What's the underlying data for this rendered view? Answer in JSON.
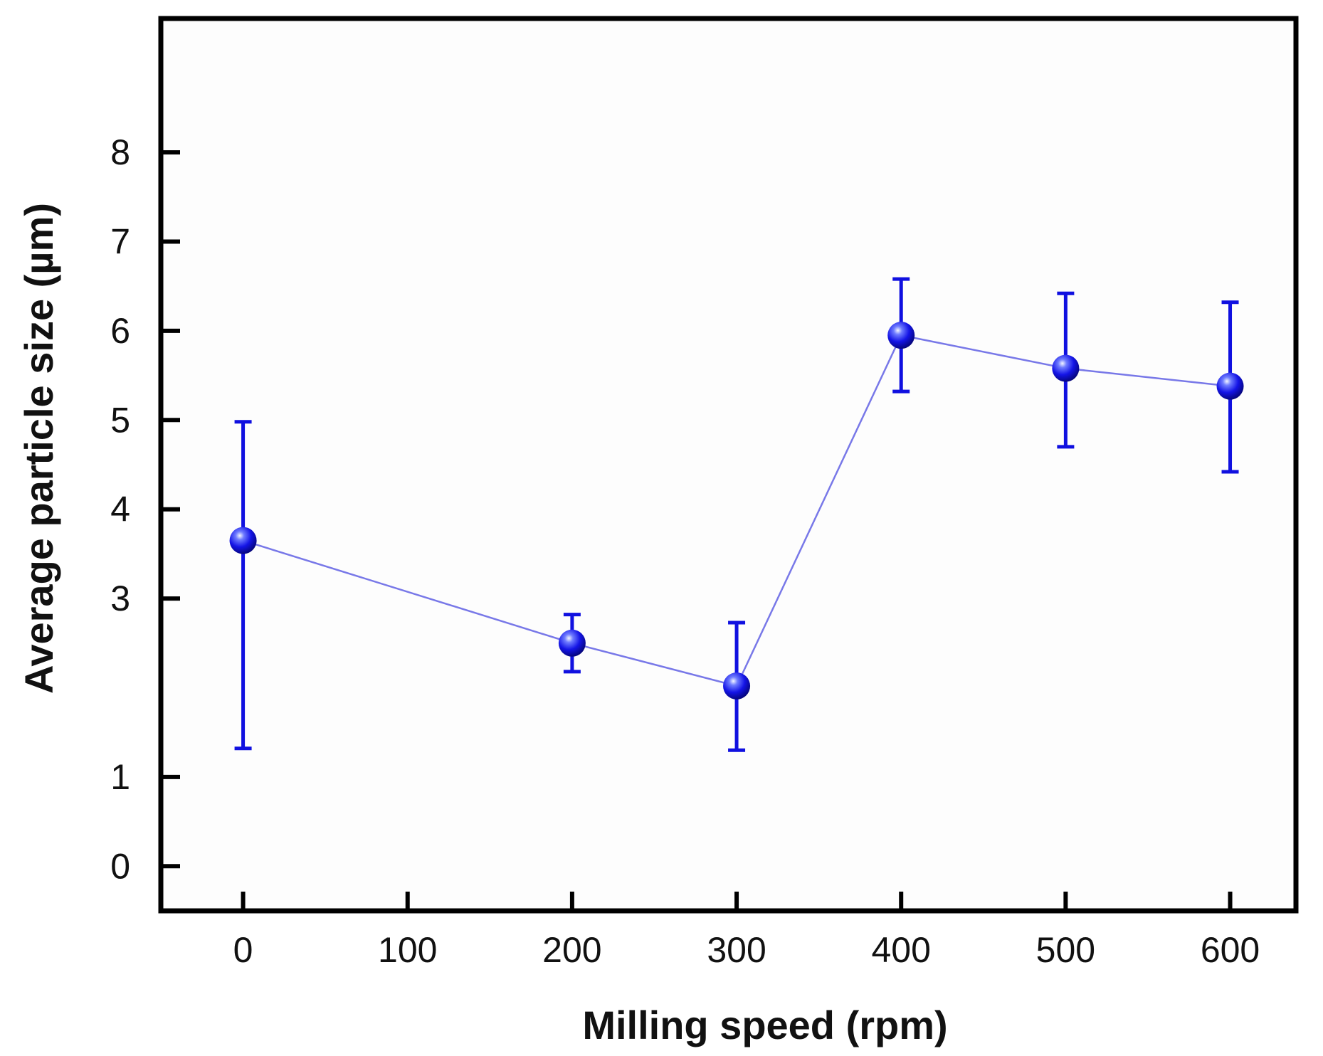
{
  "chart_data": {
    "type": "scatter",
    "title": "",
    "xlabel": "Milling speed (rpm)",
    "ylabel": "Average particle size (µm)",
    "xlim": [
      -50,
      640
    ],
    "ylim": [
      -0.5,
      9.5
    ],
    "x_ticks": [
      0,
      100,
      200,
      300,
      400,
      500,
      600
    ],
    "y_ticks": [
      0,
      1,
      3,
      4,
      5,
      6,
      7,
      8
    ],
    "grid": false,
    "legend": "none",
    "series": [
      {
        "name": "Average particle size",
        "color": "#1010e0",
        "line_color": "#7878e8",
        "x": [
          0,
          200,
          300,
          400,
          500,
          600
        ],
        "values": [
          3.65,
          2.5,
          2.02,
          5.95,
          5.58,
          5.38
        ],
        "error_low": [
          1.32,
          2.18,
          1.3,
          5.32,
          4.7,
          4.42
        ],
        "error_high": [
          4.98,
          2.82,
          2.73,
          6.58,
          6.42,
          6.32
        ]
      }
    ]
  }
}
